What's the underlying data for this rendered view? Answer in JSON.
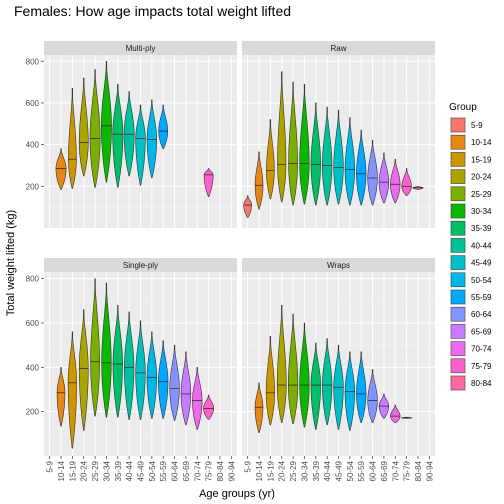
{
  "chart_data": {
    "type": "violin",
    "title": "Females: How age impacts total weight lifted",
    "xlabel": "Age groups (yr)",
    "ylabel": "Total weight lifted (kg)",
    "ylim": [
      0,
      830
    ],
    "yticks": [
      200,
      400,
      600,
      800
    ],
    "grid": true,
    "legend_position": "right",
    "legend": {
      "title": "Group",
      "items": [
        {
          "label": "5-9",
          "color": "#F8766D"
        },
        {
          "label": "10-14",
          "color": "#E68613"
        },
        {
          "label": "15-19",
          "color": "#CD9600"
        },
        {
          "label": "20-24",
          "color": "#ABA300"
        },
        {
          "label": "25-29",
          "color": "#7CAE00"
        },
        {
          "label": "30-34",
          "color": "#0CB702"
        },
        {
          "label": "35-39",
          "color": "#00BE67"
        },
        {
          "label": "40-44",
          "color": "#00C19A"
        },
        {
          "label": "45-49",
          "color": "#00BFC4"
        },
        {
          "label": "50-54",
          "color": "#00B8E7"
        },
        {
          "label": "55-59",
          "color": "#00A9FF"
        },
        {
          "label": "60-64",
          "color": "#8494FF"
        },
        {
          "label": "65-69",
          "color": "#C77CFF"
        },
        {
          "label": "70-74",
          "color": "#ED68ED"
        },
        {
          "label": "75-79",
          "color": "#FF61CC"
        },
        {
          "label": "80-84",
          "color": "#FF68A1"
        }
      ]
    },
    "categories": [
      "5-9",
      "10-14",
      "15-19",
      "20-24",
      "25-29",
      "30-34",
      "35-39",
      "40-44",
      "45-49",
      "50-54",
      "55-59",
      "60-64",
      "65-69",
      "70-74",
      "75-79",
      "80-84",
      "90-94"
    ],
    "panels": [
      {
        "name": "Multi-ply",
        "violins": [
          {
            "group": "10-14",
            "min": 185,
            "max": 380,
            "median": 285,
            "width": 0.9
          },
          {
            "group": "15-19",
            "min": 190,
            "max": 670,
            "median": 330,
            "width": 0.7
          },
          {
            "group": "20-24",
            "min": 250,
            "max": 720,
            "median": 410,
            "width": 0.8
          },
          {
            "group": "25-29",
            "min": 195,
            "max": 760,
            "median": 430,
            "width": 0.9
          },
          {
            "group": "30-34",
            "min": 220,
            "max": 800,
            "median": 490,
            "width": 0.9
          },
          {
            "group": "35-39",
            "min": 195,
            "max": 690,
            "median": 450,
            "width": 0.9
          },
          {
            "group": "40-44",
            "min": 250,
            "max": 655,
            "median": 450,
            "width": 0.9
          },
          {
            "group": "45-49",
            "min": 205,
            "max": 590,
            "median": 430,
            "width": 0.85
          },
          {
            "group": "50-54",
            "min": 240,
            "max": 615,
            "median": 425,
            "width": 0.85
          },
          {
            "group": "55-59",
            "min": 380,
            "max": 590,
            "median": 465,
            "width": 0.8
          },
          {
            "group": "75-79",
            "min": 150,
            "max": 285,
            "median": 255,
            "width": 0.8
          }
        ]
      },
      {
        "name": "Raw",
        "violins": [
          {
            "group": "5-9",
            "min": 50,
            "max": 155,
            "median": 110,
            "width": 0.7
          },
          {
            "group": "10-14",
            "min": 90,
            "max": 365,
            "median": 205,
            "width": 0.7
          },
          {
            "group": "15-19",
            "min": 140,
            "max": 520,
            "median": 275,
            "width": 0.7
          },
          {
            "group": "20-24",
            "min": 125,
            "max": 750,
            "median": 305,
            "width": 0.75
          },
          {
            "group": "25-29",
            "min": 110,
            "max": 700,
            "median": 310,
            "width": 0.8
          },
          {
            "group": "30-34",
            "min": 115,
            "max": 690,
            "median": 310,
            "width": 0.85
          },
          {
            "group": "35-39",
            "min": 110,
            "max": 600,
            "median": 305,
            "width": 0.85
          },
          {
            "group": "40-44",
            "min": 110,
            "max": 580,
            "median": 300,
            "width": 0.85
          },
          {
            "group": "45-49",
            "min": 115,
            "max": 565,
            "median": 290,
            "width": 0.85
          },
          {
            "group": "50-54",
            "min": 110,
            "max": 530,
            "median": 280,
            "width": 0.85
          },
          {
            "group": "55-59",
            "min": 110,
            "max": 470,
            "median": 260,
            "width": 0.85
          },
          {
            "group": "60-64",
            "min": 110,
            "max": 420,
            "median": 240,
            "width": 0.85
          },
          {
            "group": "65-69",
            "min": 120,
            "max": 360,
            "median": 220,
            "width": 0.85
          },
          {
            "group": "70-74",
            "min": 120,
            "max": 330,
            "median": 210,
            "width": 0.85
          },
          {
            "group": "75-79",
            "min": 155,
            "max": 285,
            "median": 200,
            "width": 0.85
          },
          {
            "group": "80-84",
            "min": 185,
            "max": 200,
            "median": 193,
            "width": 0.9
          }
        ]
      },
      {
        "name": "Single-ply",
        "violins": [
          {
            "group": "10-14",
            "min": 135,
            "max": 400,
            "median": 285,
            "width": 0.7
          },
          {
            "group": "15-19",
            "min": 35,
            "max": 560,
            "median": 330,
            "width": 0.75
          },
          {
            "group": "20-24",
            "min": 115,
            "max": 660,
            "median": 395,
            "width": 0.8
          },
          {
            "group": "25-29",
            "min": 180,
            "max": 800,
            "median": 425,
            "width": 0.8
          },
          {
            "group": "30-34",
            "min": 175,
            "max": 780,
            "median": 420,
            "width": 0.85
          },
          {
            "group": "35-39",
            "min": 175,
            "max": 680,
            "median": 415,
            "width": 0.85
          },
          {
            "group": "40-44",
            "min": 165,
            "max": 650,
            "median": 400,
            "width": 0.85
          },
          {
            "group": "45-49",
            "min": 165,
            "max": 610,
            "median": 375,
            "width": 0.85
          },
          {
            "group": "50-54",
            "min": 170,
            "max": 560,
            "median": 355,
            "width": 0.85
          },
          {
            "group": "55-59",
            "min": 170,
            "max": 520,
            "median": 335,
            "width": 0.85
          },
          {
            "group": "60-64",
            "min": 160,
            "max": 500,
            "median": 305,
            "width": 0.85
          },
          {
            "group": "65-69",
            "min": 140,
            "max": 470,
            "median": 280,
            "width": 0.85
          },
          {
            "group": "70-74",
            "min": 120,
            "max": 400,
            "median": 250,
            "width": 0.85
          },
          {
            "group": "75-79",
            "min": 165,
            "max": 275,
            "median": 215,
            "width": 0.9
          }
        ]
      },
      {
        "name": "Wraps",
        "violins": [
          {
            "group": "10-14",
            "min": 105,
            "max": 330,
            "median": 220,
            "width": 0.7
          },
          {
            "group": "15-19",
            "min": 140,
            "max": 540,
            "median": 285,
            "width": 0.75
          },
          {
            "group": "20-24",
            "min": 150,
            "max": 680,
            "median": 320,
            "width": 0.8
          },
          {
            "group": "25-29",
            "min": 145,
            "max": 640,
            "median": 320,
            "width": 0.85
          },
          {
            "group": "30-34",
            "min": 130,
            "max": 600,
            "median": 320,
            "width": 0.85
          },
          {
            "group": "35-39",
            "min": 120,
            "max": 510,
            "median": 320,
            "width": 0.85
          },
          {
            "group": "40-44",
            "min": 140,
            "max": 530,
            "median": 320,
            "width": 0.85
          },
          {
            "group": "45-49",
            "min": 120,
            "max": 500,
            "median": 310,
            "width": 0.85
          },
          {
            "group": "50-54",
            "min": 115,
            "max": 470,
            "median": 290,
            "width": 0.85
          },
          {
            "group": "55-59",
            "min": 150,
            "max": 470,
            "median": 280,
            "width": 0.85
          },
          {
            "group": "60-64",
            "min": 150,
            "max": 390,
            "median": 250,
            "width": 0.85
          },
          {
            "group": "65-69",
            "min": 170,
            "max": 280,
            "median": 225,
            "width": 0.85
          },
          {
            "group": "70-74",
            "min": 150,
            "max": 230,
            "median": 180,
            "width": 0.85
          },
          {
            "group": "75-79",
            "min": 170,
            "max": 175,
            "median": 172,
            "width": 0.9
          }
        ]
      }
    ]
  }
}
